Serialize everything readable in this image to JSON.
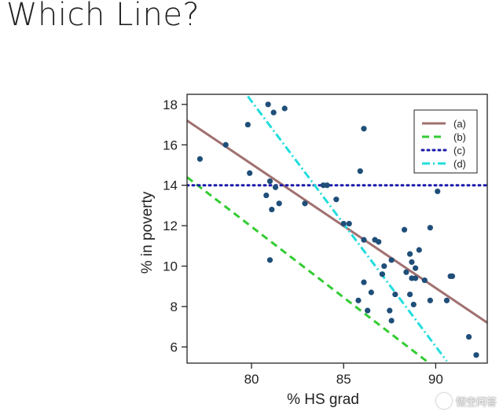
{
  "slide": {
    "title": "Which Line?"
  },
  "colors": {
    "point": "#1f4e79",
    "line_a": "#a07070",
    "line_b": "#33cc33",
    "line_c": "#1a1aaa",
    "line_d": "#22dddd"
  },
  "chart_data": {
    "type": "scatter",
    "title": "",
    "xlabel": "% HS grad",
    "ylabel": "% in poverty",
    "xlim": [
      76.5,
      92.8
    ],
    "ylim": [
      5.2,
      18.5
    ],
    "xticks": [
      80,
      85,
      90
    ],
    "yticks": [
      6,
      8,
      10,
      12,
      14,
      16,
      18
    ],
    "grid": false,
    "legend_position": "top-right",
    "points": [
      {
        "x": 77.2,
        "y": 15.3
      },
      {
        "x": 78.6,
        "y": 16.0
      },
      {
        "x": 79.8,
        "y": 17.0
      },
      {
        "x": 79.9,
        "y": 14.6
      },
      {
        "x": 80.9,
        "y": 18.0
      },
      {
        "x": 81.2,
        "y": 17.6
      },
      {
        "x": 81.8,
        "y": 17.8
      },
      {
        "x": 81.0,
        "y": 14.2
      },
      {
        "x": 80.8,
        "y": 13.5
      },
      {
        "x": 81.3,
        "y": 13.9
      },
      {
        "x": 81.5,
        "y": 13.1
      },
      {
        "x": 81.1,
        "y": 12.8
      },
      {
        "x": 81.0,
        "y": 10.3
      },
      {
        "x": 82.9,
        "y": 13.1
      },
      {
        "x": 83.9,
        "y": 14.0
      },
      {
        "x": 84.1,
        "y": 14.0
      },
      {
        "x": 84.6,
        "y": 13.3
      },
      {
        "x": 85.0,
        "y": 12.1
      },
      {
        "x": 85.3,
        "y": 12.1
      },
      {
        "x": 85.9,
        "y": 14.7
      },
      {
        "x": 86.1,
        "y": 16.8
      },
      {
        "x": 86.1,
        "y": 11.3
      },
      {
        "x": 86.7,
        "y": 11.3
      },
      {
        "x": 86.9,
        "y": 11.2
      },
      {
        "x": 87.6,
        "y": 10.3
      },
      {
        "x": 87.2,
        "y": 10.0
      },
      {
        "x": 87.1,
        "y": 9.6
      },
      {
        "x": 86.1,
        "y": 9.2
      },
      {
        "x": 86.5,
        "y": 8.7
      },
      {
        "x": 85.8,
        "y": 8.3
      },
      {
        "x": 86.3,
        "y": 7.8
      },
      {
        "x": 87.5,
        "y": 7.8
      },
      {
        "x": 87.6,
        "y": 7.3
      },
      {
        "x": 87.8,
        "y": 8.6
      },
      {
        "x": 88.3,
        "y": 11.8
      },
      {
        "x": 88.6,
        "y": 10.6
      },
      {
        "x": 88.7,
        "y": 10.2
      },
      {
        "x": 89.1,
        "y": 10.8
      },
      {
        "x": 88.4,
        "y": 9.7
      },
      {
        "x": 88.9,
        "y": 9.9
      },
      {
        "x": 88.7,
        "y": 9.4
      },
      {
        "x": 88.9,
        "y": 9.4
      },
      {
        "x": 88.6,
        "y": 8.6
      },
      {
        "x": 88.8,
        "y": 8.1
      },
      {
        "x": 89.4,
        "y": 9.3
      },
      {
        "x": 89.7,
        "y": 11.9
      },
      {
        "x": 90.1,
        "y": 13.7
      },
      {
        "x": 89.7,
        "y": 8.3
      },
      {
        "x": 90.6,
        "y": 8.3
      },
      {
        "x": 90.8,
        "y": 9.5
      },
      {
        "x": 90.9,
        "y": 9.5
      },
      {
        "x": 91.8,
        "y": 6.5
      },
      {
        "x": 92.2,
        "y": 5.6
      }
    ],
    "lines": [
      {
        "name": "(a)",
        "style": "solid",
        "color": "#a07070",
        "x": [
          76.5,
          92.8
        ],
        "y": [
          17.2,
          7.2
        ]
      },
      {
        "name": "(b)",
        "style": "dashed",
        "color": "#33cc33",
        "x": [
          76.5,
          89.5
        ],
        "y": [
          14.4,
          5.3
        ]
      },
      {
        "name": "(c)",
        "style": "dotted",
        "color": "#1a1aaa",
        "x": [
          76.5,
          92.8
        ],
        "y": [
          14.0,
          14.0
        ]
      },
      {
        "name": "(d)",
        "style": "dashdot",
        "color": "#22dddd",
        "x": [
          79.8,
          90.6
        ],
        "y": [
          18.4,
          5.3
        ]
      }
    ]
  },
  "watermark": {
    "text": "悟空问答"
  }
}
